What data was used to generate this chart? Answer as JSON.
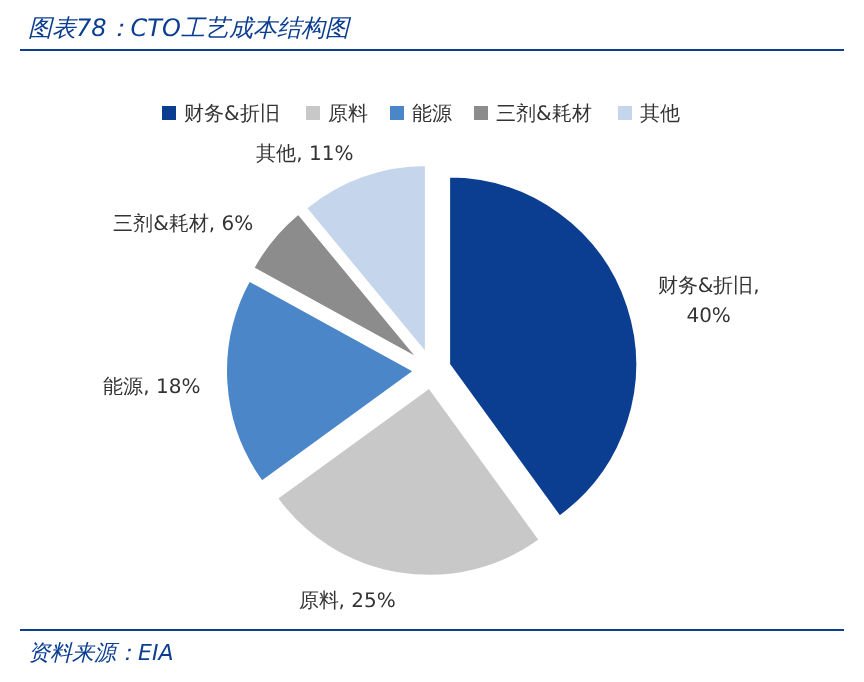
{
  "chart_data": {
    "type": "pie",
    "title": "图表78：CTO工艺成本结构图",
    "categories": [
      "财务&折旧",
      "原料",
      "能源",
      "三剂&耗材",
      "其他"
    ],
    "values": [
      40,
      25,
      18,
      6,
      11
    ],
    "value_labels": [
      "财务&折旧, 40%",
      "原料, 25%",
      "能源, 18%",
      "三剂&耗材, 6%",
      "其他, 11%"
    ],
    "colors": [
      "#0b3e91",
      "#c8c8c8",
      "#4a86c8",
      "#8c8c8c",
      "#c5d5ec"
    ],
    "legend": "top",
    "annotations": [
      "资料来源：EIA"
    ]
  }
}
